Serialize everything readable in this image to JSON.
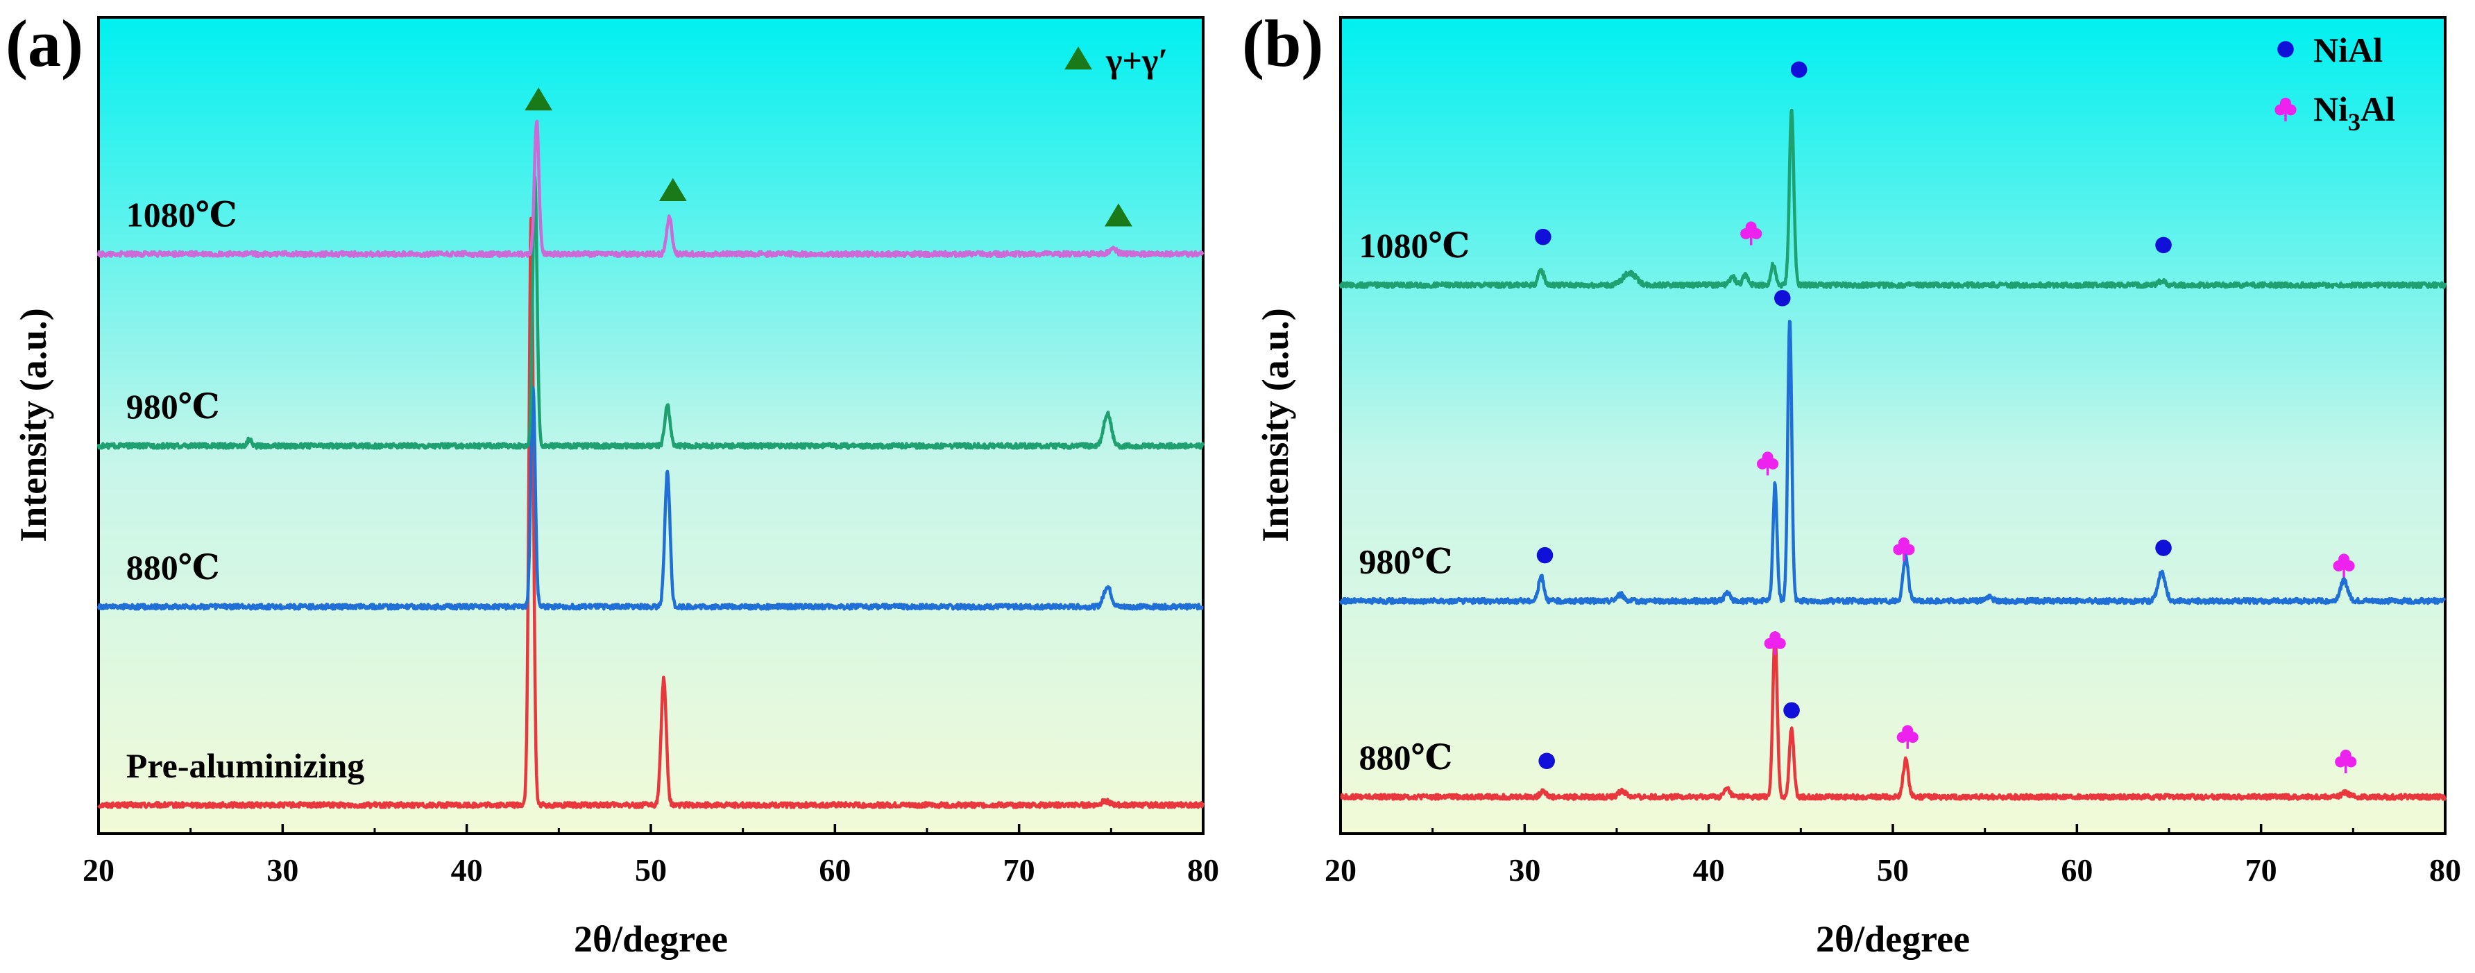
{
  "chart_data": [
    {
      "type": "line",
      "panel_label": "(a)",
      "xlabel": "2θ/degree",
      "ylabel": "Intensity (a.u.)",
      "xlim": [
        20,
        80
      ],
      "ylim": [
        0,
        1
      ],
      "xticks": [
        20,
        30,
        40,
        50,
        60,
        70,
        80
      ],
      "legend": {
        "position": "top-right",
        "entries": [
          {
            "marker": "triangle-icon",
            "color": "#1a7a1a",
            "label": "γ+γ′"
          }
        ]
      },
      "background_gradient": [
        "#00f0f0",
        "#f2fad8"
      ],
      "series": [
        {
          "name": "Pre-aluminizing",
          "color": "#e8383d",
          "baseline": 0.035,
          "label_x": 21,
          "peaks": [
            {
              "x": 43.5,
              "height": 0.72,
              "width": 0.12
            },
            {
              "x": 50.7,
              "height": 0.155,
              "width": 0.14
            },
            {
              "x": 74.7,
              "height": 0.005,
              "width": 0.2
            }
          ]
        },
        {
          "name": "880℃",
          "color": "#1f6fd6",
          "baseline": 0.278,
          "label_x": 21,
          "peaks": [
            {
              "x": 43.6,
              "height": 0.27,
              "width": 0.12
            },
            {
              "x": 50.9,
              "height": 0.165,
              "width": 0.14
            },
            {
              "x": 74.8,
              "height": 0.025,
              "width": 0.2
            }
          ]
        },
        {
          "name": "980℃",
          "color": "#1ea070",
          "baseline": 0.475,
          "label_x": 21,
          "peaks": [
            {
              "x": 28.2,
              "height": 0.008,
              "width": 0.12
            },
            {
              "x": 43.7,
              "height": 0.33,
              "width": 0.12
            },
            {
              "x": 50.9,
              "height": 0.05,
              "width": 0.14
            },
            {
              "x": 74.8,
              "height": 0.04,
              "width": 0.2
            }
          ]
        },
        {
          "name": "1080℃",
          "color": "#cc6ad8",
          "baseline": 0.71,
          "label_x": 21,
          "peaks": [
            {
              "x": 43.8,
              "height": 0.165,
              "width": 0.12
            },
            {
              "x": 51.0,
              "height": 0.045,
              "width": 0.14
            },
            {
              "x": 75.1,
              "height": 0.006,
              "width": 0.2
            }
          ]
        }
      ],
      "markers": [
        {
          "x": 43.9,
          "y": 0.898,
          "symbol": "triangle-icon",
          "color": "#1a7a1a"
        },
        {
          "x": 51.2,
          "y": 0.787,
          "symbol": "triangle-icon",
          "color": "#1a7a1a"
        },
        {
          "x": 75.4,
          "y": 0.756,
          "symbol": "triangle-icon",
          "color": "#1a7a1a"
        }
      ]
    },
    {
      "type": "line",
      "panel_label": "(b)",
      "xlabel": "2θ/degree",
      "ylabel": "Intensity (a.u.)",
      "xlim": [
        20,
        80
      ],
      "ylim": [
        0,
        1
      ],
      "xticks": [
        20,
        30,
        40,
        50,
        60,
        70,
        80
      ],
      "legend": {
        "position": "top-right",
        "entries": [
          {
            "marker": "circle-icon",
            "color": "#1010d8",
            "label": "NiAl"
          },
          {
            "marker": "club-icon",
            "color": "#ee22ee",
            "label": "Ni",
            "sub": "3",
            "tail": "Al"
          }
        ]
      },
      "background_gradient": [
        "#00f0f0",
        "#f2fad8"
      ],
      "series": [
        {
          "name": "880℃",
          "color": "#e8383d",
          "baseline": 0.045,
          "label_x": 20.5,
          "peaks": [
            {
              "x": 31.0,
              "height": 0.008,
              "width": 0.15
            },
            {
              "x": 35.3,
              "height": 0.007,
              "width": 0.2
            },
            {
              "x": 41.0,
              "height": 0.01,
              "width": 0.15
            },
            {
              "x": 43.6,
              "height": 0.2,
              "width": 0.12
            },
            {
              "x": 44.5,
              "height": 0.085,
              "width": 0.12
            },
            {
              "x": 50.7,
              "height": 0.045,
              "width": 0.14
            },
            {
              "x": 74.6,
              "height": 0.005,
              "width": 0.2
            }
          ]
        },
        {
          "name": "980℃",
          "color": "#1f6fd6",
          "baseline": 0.285,
          "label_x": 20.5,
          "peaks": [
            {
              "x": 30.9,
              "height": 0.03,
              "width": 0.15
            },
            {
              "x": 35.2,
              "height": 0.008,
              "width": 0.2
            },
            {
              "x": 41.0,
              "height": 0.01,
              "width": 0.15
            },
            {
              "x": 43.6,
              "height": 0.145,
              "width": 0.11
            },
            {
              "x": 44.4,
              "height": 0.345,
              "width": 0.11
            },
            {
              "x": 50.7,
              "height": 0.055,
              "width": 0.14
            },
            {
              "x": 55.2,
              "height": 0.005,
              "width": 0.2
            },
            {
              "x": 64.6,
              "height": 0.035,
              "width": 0.2
            },
            {
              "x": 74.5,
              "height": 0.025,
              "width": 0.2
            }
          ]
        },
        {
          "name": "1080℃",
          "color": "#1ea070",
          "baseline": 0.672,
          "label_x": 20.5,
          "peaks": [
            {
              "x": 30.9,
              "height": 0.018,
              "width": 0.15
            },
            {
              "x": 35.7,
              "height": 0.015,
              "width": 0.35
            },
            {
              "x": 41.3,
              "height": 0.01,
              "width": 0.15
            },
            {
              "x": 42.0,
              "height": 0.012,
              "width": 0.15
            },
            {
              "x": 43.5,
              "height": 0.025,
              "width": 0.12
            },
            {
              "x": 44.5,
              "height": 0.215,
              "width": 0.12
            },
            {
              "x": 64.6,
              "height": 0.005,
              "width": 0.2
            }
          ]
        }
      ],
      "markers": [
        {
          "x": 31.2,
          "y": 0.089,
          "symbol": "circle-icon",
          "color": "#1010d8"
        },
        {
          "x": 44.5,
          "y": 0.151,
          "symbol": "circle-icon",
          "color": "#1010d8"
        },
        {
          "x": 43.6,
          "y": 0.235,
          "symbol": "club-icon",
          "color": "#ee22ee"
        },
        {
          "x": 50.8,
          "y": 0.12,
          "symbol": "club-icon",
          "color": "#ee22ee"
        },
        {
          "x": 74.6,
          "y": 0.09,
          "symbol": "club-icon",
          "color": "#ee22ee"
        },
        {
          "x": 31.1,
          "y": 0.341,
          "symbol": "circle-icon",
          "color": "#1010d8"
        },
        {
          "x": 64.7,
          "y": 0.35,
          "symbol": "circle-icon",
          "color": "#1010d8"
        },
        {
          "x": 43.2,
          "y": 0.455,
          "symbol": "club-icon",
          "color": "#ee22ee"
        },
        {
          "x": 50.6,
          "y": 0.35,
          "symbol": "club-icon",
          "color": "#ee22ee"
        },
        {
          "x": 74.5,
          "y": 0.33,
          "symbol": "club-icon",
          "color": "#ee22ee"
        },
        {
          "x": 44.0,
          "y": 0.656,
          "symbol": "circle-icon",
          "color": "#1010d8"
        },
        {
          "x": 31.0,
          "y": 0.731,
          "symbol": "circle-icon",
          "color": "#1010d8"
        },
        {
          "x": 64.7,
          "y": 0.721,
          "symbol": "circle-icon",
          "color": "#1010d8"
        },
        {
          "x": 42.3,
          "y": 0.737,
          "symbol": "club-icon",
          "color": "#ee22ee"
        },
        {
          "x": 44.9,
          "y": 0.936,
          "symbol": "circle-icon",
          "color": "#1010d8"
        }
      ]
    }
  ]
}
